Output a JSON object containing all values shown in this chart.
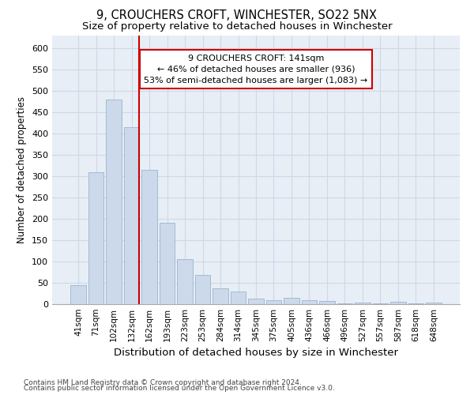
{
  "title": "9, CROUCHERS CROFT, WINCHESTER, SO22 5NX",
  "subtitle": "Size of property relative to detached houses in Winchester",
  "xlabel": "Distribution of detached houses by size in Winchester",
  "ylabel": "Number of detached properties",
  "bar_color": "#ccd9ea",
  "bar_edge_color": "#9ab4d0",
  "property_line_color": "#cc0000",
  "property_label": "9 CROUCHERS CROFT: 141sqm",
  "annotation_line1": "← 46% of detached houses are smaller (936)",
  "annotation_line2": "53% of semi-detached houses are larger (1,083) →",
  "annotation_box_color": "#ffffff",
  "annotation_box_edge": "#cc0000",
  "categories": [
    "41sqm",
    "71sqm",
    "102sqm",
    "132sqm",
    "162sqm",
    "193sqm",
    "223sqm",
    "253sqm",
    "284sqm",
    "314sqm",
    "345sqm",
    "375sqm",
    "405sqm",
    "436sqm",
    "466sqm",
    "496sqm",
    "527sqm",
    "557sqm",
    "587sqm",
    "618sqm",
    "648sqm"
  ],
  "values": [
    45,
    310,
    480,
    415,
    315,
    190,
    105,
    68,
    37,
    29,
    13,
    10,
    14,
    10,
    7,
    1,
    4,
    1,
    5,
    1,
    4
  ],
  "ylim": [
    0,
    630
  ],
  "yticks": [
    0,
    50,
    100,
    150,
    200,
    250,
    300,
    350,
    400,
    450,
    500,
    550,
    600
  ],
  "grid_color": "#cdd8e8",
  "background_color": "#e8eef5",
  "footer_line1": "Contains HM Land Registry data © Crown copyright and database right 2024.",
  "footer_line2": "Contains public sector information licensed under the Open Government Licence v3.0.",
  "title_fontsize": 10.5,
  "subtitle_fontsize": 9.5,
  "ylabel_fontsize": 8.5,
  "xlabel_fontsize": 9.5,
  "tick_fontsize": 8,
  "xtick_fontsize": 7.5,
  "footer_fontsize": 6.5,
  "annot_fontsize": 8
}
